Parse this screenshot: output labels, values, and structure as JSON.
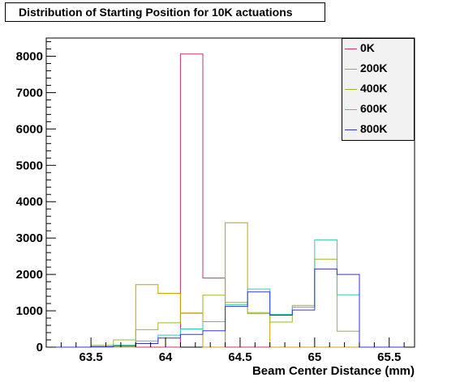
{
  "chart_data": {
    "type": "histogram",
    "title": "Distribution of Starting Position for 10K actuations",
    "xlabel": "Beam Center Distance (mm)",
    "ylabel": "",
    "xlim": [
      63.2,
      65.67
    ],
    "ylim": [
      0,
      8500
    ],
    "x_ticks": [
      63.5,
      64,
      64.5,
      65,
      65.5
    ],
    "x_tick_labels": [
      "63.5",
      "64",
      "64.5",
      "65",
      "65.5"
    ],
    "y_ticks": [
      0,
      1000,
      2000,
      3000,
      4000,
      5000,
      6000,
      7000,
      8000
    ],
    "y_tick_labels": [
      "0",
      "1000",
      "2000",
      "3000",
      "4000",
      "5000",
      "6000",
      "7000",
      "8000"
    ],
    "bin_edges": [
      63.2,
      63.35,
      63.5,
      63.65,
      63.8,
      63.95,
      64.1,
      64.25,
      64.4,
      64.55,
      64.7,
      64.85,
      65.0,
      65.15,
      65.3,
      65.45,
      65.6
    ],
    "legend_position": "top-right",
    "series": [
      {
        "name": "0K",
        "color": "#cc3366",
        "values": [
          0,
          0,
          0,
          0,
          0,
          0,
          8060,
          1900,
          0,
          0,
          0,
          0,
          0,
          0,
          0,
          0
        ]
      },
      {
        "name": "200K",
        "color": "#c8a000",
        "values": [
          0,
          0,
          0,
          0,
          1720,
          1480,
          940,
          0,
          3420,
          920,
          0,
          0,
          0,
          0,
          0,
          0
        ]
      },
      {
        "name": "400K",
        "color": "#99bb22",
        "values": [
          0,
          0,
          50,
          200,
          480,
          670,
          930,
          1430,
          1230,
          950,
          690,
          1150,
          2420,
          440,
          0,
          0
        ]
      },
      {
        "name": "600K",
        "color": "#33ccaa",
        "values": [
          0,
          0,
          20,
          60,
          170,
          330,
          500,
          700,
          1170,
          1600,
          900,
          1100,
          2950,
          1440,
          0,
          0
        ]
      },
      {
        "name": "800K",
        "color": "#3333dd",
        "values": [
          0,
          0,
          10,
          30,
          100,
          250,
          350,
          450,
          1120,
          1520,
          880,
          1020,
          2150,
          2000,
          0,
          0
        ]
      }
    ]
  }
}
